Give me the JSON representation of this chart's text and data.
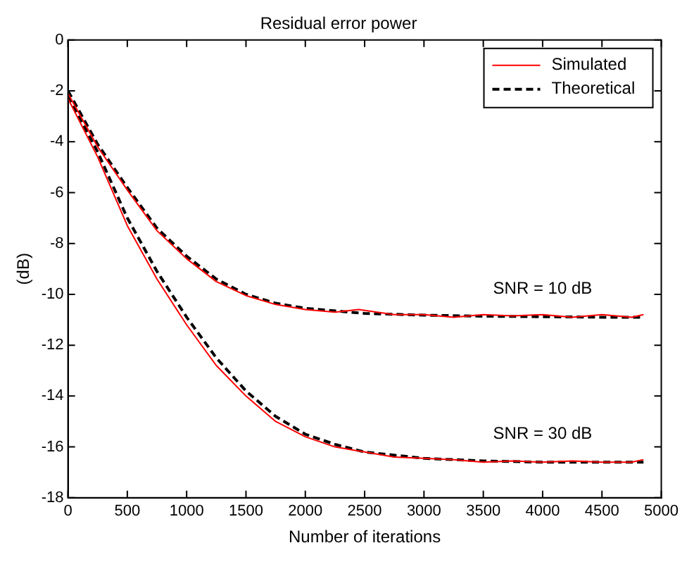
{
  "chart_data": {
    "type": "line",
    "title": "Residual error power",
    "xlabel": "Number of iterations",
    "ylabel": "(dB)",
    "xlim": [
      0,
      5000
    ],
    "xticks": [
      0,
      500,
      1000,
      1500,
      2000,
      2500,
      3000,
      3500,
      4000,
      4500,
      5000
    ],
    "ylim": [
      -18,
      0
    ],
    "yticks": [
      -18,
      -16,
      -14,
      -12,
      -10,
      -8,
      -6,
      -4,
      -2,
      0
    ],
    "grid": false,
    "legend": "top right",
    "series": [
      {
        "name": "Simulated",
        "color": "#ff0000",
        "line_style": "solid",
        "x": [
          0,
          250,
          500,
          750,
          1000,
          1250,
          1500,
          1750,
          2000,
          2250,
          2450,
          2750,
          3000,
          3250,
          3500,
          3750,
          4000,
          4250,
          4500,
          4750,
          4850
        ],
        "values": [
          -2.1,
          -4.2,
          -5.9,
          -7.5,
          -8.6,
          -9.5,
          -10.05,
          -10.4,
          -10.6,
          -10.7,
          -10.6,
          -10.8,
          -10.8,
          -10.9,
          -10.8,
          -10.85,
          -10.8,
          -10.9,
          -10.8,
          -10.9,
          -10.8
        ]
      },
      {
        "color": "#000000",
        "line_style": "dashed",
        "x": [
          0,
          250,
          500,
          750,
          1000,
          1250,
          1500,
          1750,
          2000,
          2500,
          3000,
          3500,
          4000,
          4500,
          4850
        ],
        "values": [
          -2.0,
          -4.1,
          -5.8,
          -7.4,
          -8.5,
          -9.4,
          -10.0,
          -10.35,
          -10.55,
          -10.75,
          -10.82,
          -10.86,
          -10.88,
          -10.9,
          -10.9
        ]
      },
      {
        "color": "#ff0000",
        "line_style": "solid",
        "x": [
          0,
          250,
          500,
          750,
          1000,
          1250,
          1500,
          1750,
          2000,
          2250,
          2500,
          2750,
          3000,
          3250,
          3500,
          3750,
          4000,
          4250,
          4500,
          4750,
          4850
        ],
        "values": [
          -2.3,
          -4.6,
          -7.3,
          -9.4,
          -11.2,
          -12.8,
          -14.0,
          -15.0,
          -15.6,
          -16.0,
          -16.2,
          -16.4,
          -16.45,
          -16.5,
          -16.6,
          -16.55,
          -16.6,
          -16.55,
          -16.6,
          -16.6,
          -16.5
        ]
      },
      {
        "name": "Theoretical",
        "color": "#000000",
        "line_style": "dashed",
        "x": [
          0,
          250,
          500,
          750,
          1000,
          1250,
          1500,
          1750,
          2000,
          2250,
          2500,
          3000,
          3500,
          4000,
          4500,
          4850
        ],
        "values": [
          -2.2,
          -4.4,
          -7.0,
          -9.1,
          -10.9,
          -12.5,
          -13.8,
          -14.8,
          -15.5,
          -15.9,
          -16.2,
          -16.45,
          -16.55,
          -16.6,
          -16.6,
          -16.6
        ]
      }
    ],
    "annotations": [
      "SNR = 10 dB",
      "SNR = 30 dB"
    ]
  }
}
